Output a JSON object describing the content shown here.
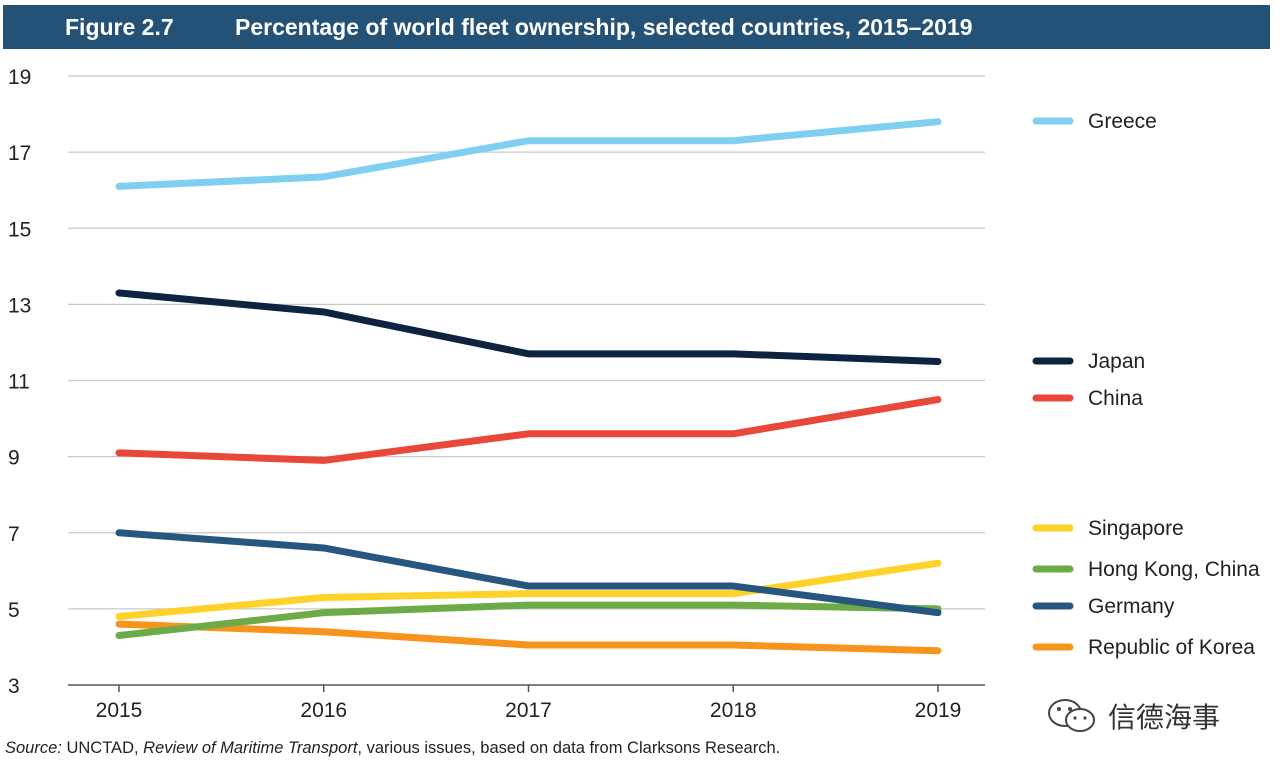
{
  "header": {
    "figure_label": "Figure 2.7",
    "title": "Percentage of world fleet ownership, selected countries, 2015–2019"
  },
  "source": {
    "prefix": "Source:",
    "part1": " UNCTAD, ",
    "publication": "Review of Maritime Transport",
    "part2": ", various issues, based on data from Clarksons Research."
  },
  "watermark": {
    "text": "信德海事",
    "icon": "wechat-icon"
  },
  "chart_data": {
    "type": "line",
    "title": "Percentage of world fleet ownership, selected countries, 2015–2019",
    "xlabel": "",
    "ylabel": "",
    "categories": [
      "2015",
      "2016",
      "2017",
      "2018",
      "2019"
    ],
    "ylim": [
      3,
      19
    ],
    "yticks": [
      3,
      5,
      7,
      9,
      11,
      13,
      15,
      17,
      19
    ],
    "grid": true,
    "legend_position": "right",
    "series": [
      {
        "name": "Greece",
        "color": "#7fd0f0",
        "values": [
          16.1,
          16.35,
          17.3,
          17.3,
          17.8
        ]
      },
      {
        "name": "Japan",
        "color": "#0d2340",
        "values": [
          13.3,
          12.8,
          11.7,
          11.7,
          11.5
        ]
      },
      {
        "name": "China",
        "color": "#e8473a",
        "values": [
          9.1,
          8.9,
          9.6,
          9.6,
          10.5
        ]
      },
      {
        "name": "Singapore",
        "color": "#ffd12b",
        "values": [
          4.8,
          5.3,
          5.4,
          5.4,
          6.2
        ]
      },
      {
        "name": "Hong Kong, China",
        "color": "#6dab48",
        "values": [
          4.3,
          4.9,
          5.1,
          5.1,
          5.0
        ]
      },
      {
        "name": "Germany",
        "color": "#27567e",
        "values": [
          7.0,
          6.6,
          5.6,
          5.6,
          4.9
        ]
      },
      {
        "name": "Republic of Korea",
        "color": "#f7941d",
        "values": [
          4.6,
          4.4,
          4.05,
          4.05,
          3.9
        ]
      }
    ]
  }
}
